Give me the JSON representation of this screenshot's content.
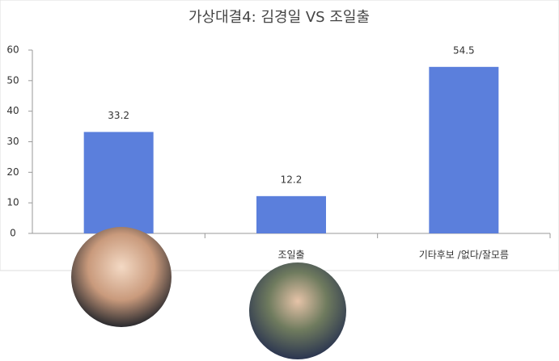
{
  "chart_data": {
    "type": "bar",
    "title": "가상대결4: 김경일 VS 조일출",
    "categories": [
      null,
      "조일출",
      "기타후보 /없다/잘모름"
    ],
    "values": [
      33.2,
      12.2,
      54.5
    ],
    "color": "#5b7fdc",
    "ylim": [
      0,
      60
    ],
    "yticks": [
      0,
      10,
      20,
      30,
      40,
      50,
      60
    ],
    "grid": false
  }
}
